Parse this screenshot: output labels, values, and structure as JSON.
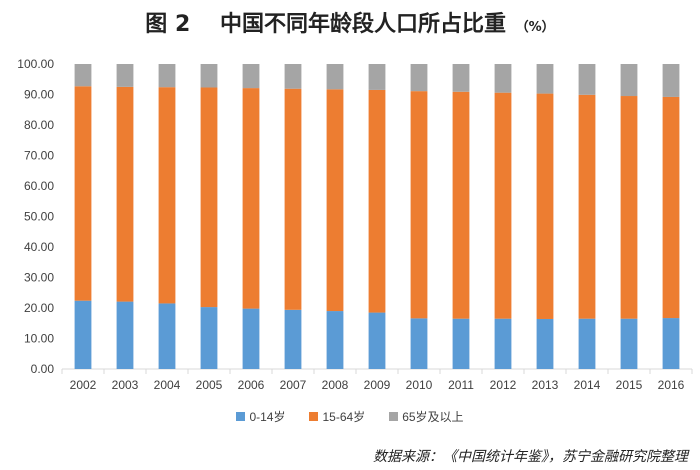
{
  "title": {
    "prefix": "图",
    "number": "2",
    "text": "中国不同年龄段人口所占比重",
    "unit": "（%）"
  },
  "source_note": "数据来源：《中国统计年鉴》，苏宁金融研究院整理",
  "chart_data": {
    "type": "bar",
    "stacked": true,
    "categories": [
      "2002",
      "2003",
      "2004",
      "2005",
      "2006",
      "2007",
      "2008",
      "2009",
      "2010",
      "2011",
      "2012",
      "2013",
      "2014",
      "2015",
      "2016"
    ],
    "series": [
      {
        "name": "0-14岁",
        "color": "#5b9bd5",
        "values": [
          22.4,
          22.1,
          21.5,
          20.3,
          19.8,
          19.4,
          19.0,
          18.5,
          16.6,
          16.5,
          16.5,
          16.4,
          16.5,
          16.5,
          16.7
        ]
      },
      {
        "name": "15-64岁",
        "color": "#ed7d31",
        "values": [
          70.3,
          70.4,
          70.9,
          72.0,
          72.3,
          72.5,
          72.7,
          73.0,
          74.5,
          74.4,
          74.1,
          73.9,
          73.4,
          73.0,
          72.5
        ]
      },
      {
        "name": "65岁及以上",
        "color": "#a5a5a5",
        "values": [
          7.3,
          7.5,
          7.6,
          7.7,
          7.9,
          8.1,
          8.3,
          8.5,
          8.9,
          9.1,
          9.4,
          9.7,
          10.1,
          10.5,
          10.8
        ]
      }
    ],
    "ylim": [
      0,
      100
    ],
    "yticks": [
      "0.00",
      "10.00",
      "20.00",
      "30.00",
      "40.00",
      "50.00",
      "60.00",
      "70.00",
      "80.00",
      "90.00",
      "100.00"
    ],
    "grid": false,
    "legend_position": "bottom"
  }
}
